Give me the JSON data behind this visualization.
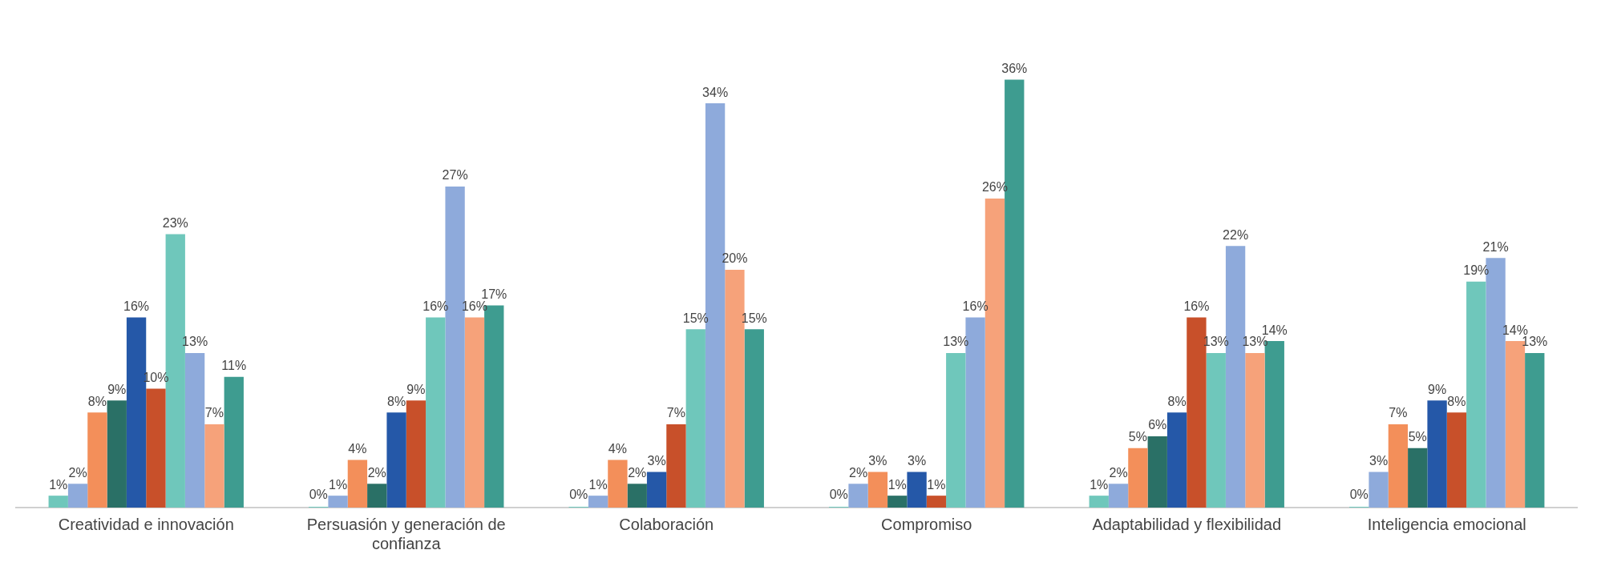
{
  "chart_data": {
    "type": "bar",
    "categories": [
      "Creatividad e innovación",
      "Persuasión y generación de confianza",
      "Colaboración",
      "Compromiso",
      "Adaptabilidad y flexibilidad",
      "Inteligencia emocional"
    ],
    "series": [
      {
        "color": "#6fc7bb",
        "values": [
          1,
          0,
          0,
          0,
          1,
          0
        ],
        "value_labels": [
          "1%",
          "0%",
          "0%",
          "0%",
          "1%",
          "0%"
        ]
      },
      {
        "color": "#8eaadb",
        "values": [
          2,
          1,
          1,
          2,
          2,
          3
        ],
        "value_labels": [
          "2%",
          "1%",
          "1%",
          "2%",
          "2%",
          "3%"
        ]
      },
      {
        "color": "#f38f5a",
        "values": [
          8,
          4,
          4,
          3,
          5,
          7
        ],
        "value_labels": [
          "8%",
          "4%",
          "4%",
          "3%",
          "5%",
          "7%"
        ]
      },
      {
        "color": "#2a7066",
        "values": [
          9,
          2,
          2,
          1,
          6,
          5
        ],
        "value_labels": [
          "9%",
          "2%",
          "2%",
          "1%",
          "6%",
          "5%"
        ]
      },
      {
        "color": "#2558a8",
        "values": [
          16,
          8,
          3,
          3,
          8,
          9
        ],
        "value_labels": [
          "16%",
          "8%",
          "3%",
          "3%",
          "8%",
          "9%"
        ]
      },
      {
        "color": "#c8502a",
        "values": [
          10,
          9,
          7,
          1,
          16,
          8
        ],
        "value_labels": [
          "10%",
          "9%",
          "7%",
          "1%",
          "16%",
          "8%"
        ]
      },
      {
        "color": "#6fc7bb",
        "values": [
          23,
          16,
          15,
          13,
          13,
          19
        ],
        "value_labels": [
          "23%",
          "16%",
          "15%",
          "13%",
          "13%",
          "19%"
        ]
      },
      {
        "color": "#8eaadb",
        "values": [
          13,
          27,
          34,
          16,
          22,
          21
        ],
        "value_labels": [
          "13%",
          "27%",
          "34%",
          "16%",
          "22%",
          "21%"
        ]
      },
      {
        "color": "#f6a27a",
        "values": [
          7,
          16,
          20,
          26,
          13,
          14
        ],
        "value_labels": [
          "7%",
          "16%",
          "20%",
          "26%",
          "13%",
          "14%"
        ]
      },
      {
        "color": "#3e9c90",
        "values": [
          11,
          17,
          15,
          36,
          14,
          13
        ],
        "value_labels": [
          "11%",
          "17%",
          "15%",
          "36%",
          "14%",
          "13%"
        ]
      }
    ],
    "grid": false,
    "legend": false
  }
}
